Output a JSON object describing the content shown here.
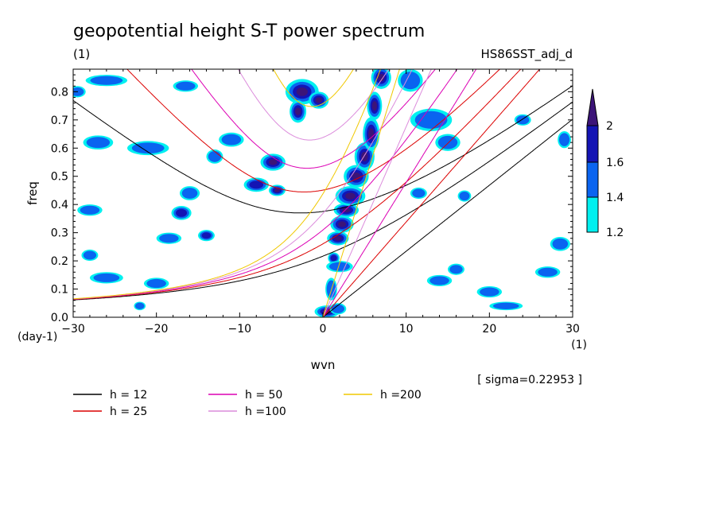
{
  "chart_data": {
    "type": "heatmap",
    "title": "geopotential height S-T power spectrum",
    "subtitle_left": "(1)",
    "subtitle_right": "HS86SST_adj_d",
    "xlabel": "wvn",
    "ylabel": "freq",
    "x_unit": "(1)",
    "y_unit": "(day-1)",
    "xlim": [
      -30,
      30
    ],
    "ylim": [
      0,
      0.88
    ],
    "x_ticks": [
      -30,
      -20,
      -10,
      0,
      10,
      20,
      30
    ],
    "y_ticks": [
      0.0,
      0.1,
      0.2,
      0.3,
      0.4,
      0.5,
      0.6,
      0.7,
      0.8
    ],
    "note": "[ sigma=0.22953 ]",
    "colorbar": {
      "levels": [
        1.2,
        1.4,
        1.6,
        2
      ],
      "labels": [
        "1.2",
        "1.4",
        "1.6",
        "2"
      ],
      "colors": [
        "#00f0f0",
        "#0a64f0",
        "#1414b4",
        "#3c1478"
      ]
    },
    "dispersion_curves": [
      {
        "label": "h = 12",
        "h": 12,
        "color": "#000000"
      },
      {
        "label": "h = 25",
        "h": 25,
        "color": "#dc0000"
      },
      {
        "label": "h = 50",
        "h": 50,
        "color": "#dc00b4"
      },
      {
        "label": "h =100",
        "h": 100,
        "color": "#dc8cdc"
      },
      {
        "label": "h =200",
        "h": 200,
        "color": "#f0c800"
      }
    ],
    "significant_regions": [
      {
        "x": 0.5,
        "y": 0.02,
        "rx": 1.5,
        "ry": 0.022,
        "level": 3
      },
      {
        "x": 1.8,
        "y": 0.03,
        "rx": 1.0,
        "ry": 0.02,
        "level": 1
      },
      {
        "x": 1.0,
        "y": 0.1,
        "rx": 0.7,
        "ry": 0.04,
        "level": 1
      },
      {
        "x": 1.3,
        "y": 0.21,
        "rx": 0.7,
        "ry": 0.02,
        "level": 2
      },
      {
        "x": 2.0,
        "y": 0.18,
        "rx": 1.6,
        "ry": 0.02,
        "level": 1
      },
      {
        "x": 1.8,
        "y": 0.28,
        "rx": 1.3,
        "ry": 0.025,
        "level": 3
      },
      {
        "x": 2.3,
        "y": 0.33,
        "rx": 1.4,
        "ry": 0.03,
        "level": 3
      },
      {
        "x": 2.8,
        "y": 0.38,
        "rx": 1.5,
        "ry": 0.025,
        "level": 3
      },
      {
        "x": 3.3,
        "y": 0.43,
        "rx": 1.8,
        "ry": 0.035,
        "level": 3
      },
      {
        "x": 4.0,
        "y": 0.5,
        "rx": 1.5,
        "ry": 0.04,
        "level": 3
      },
      {
        "x": 5.0,
        "y": 0.57,
        "rx": 1.2,
        "ry": 0.05,
        "level": 3
      },
      {
        "x": 5.8,
        "y": 0.65,
        "rx": 1.0,
        "ry": 0.06,
        "level": 3
      },
      {
        "x": 6.2,
        "y": 0.75,
        "rx": 0.9,
        "ry": 0.05,
        "level": 3
      },
      {
        "x": 7.0,
        "y": 0.85,
        "rx": 1.2,
        "ry": 0.04,
        "level": 3
      },
      {
        "x": -2.5,
        "y": 0.8,
        "rx": 2.0,
        "ry": 0.045,
        "level": 3
      },
      {
        "x": -3.0,
        "y": 0.73,
        "rx": 1.0,
        "ry": 0.04,
        "level": 3
      },
      {
        "x": -0.5,
        "y": 0.77,
        "rx": 1.2,
        "ry": 0.03,
        "level": 3
      },
      {
        "x": 10.5,
        "y": 0.84,
        "rx": 1.5,
        "ry": 0.04,
        "level": 1
      },
      {
        "x": 13.0,
        "y": 0.7,
        "rx": 2.5,
        "ry": 0.04,
        "level": 1
      },
      {
        "x": 15.0,
        "y": 0.62,
        "rx": 1.5,
        "ry": 0.03,
        "level": 1
      },
      {
        "x": -6.0,
        "y": 0.55,
        "rx": 1.5,
        "ry": 0.03,
        "level": 3
      },
      {
        "x": -8.0,
        "y": 0.47,
        "rx": 1.5,
        "ry": 0.025,
        "level": 2
      },
      {
        "x": -5.5,
        "y": 0.45,
        "rx": 1.0,
        "ry": 0.02,
        "level": 3
      },
      {
        "x": -11.0,
        "y": 0.63,
        "rx": 1.5,
        "ry": 0.025,
        "level": 1
      },
      {
        "x": -13.0,
        "y": 0.57,
        "rx": 1.0,
        "ry": 0.025,
        "level": 1
      },
      {
        "x": -16.0,
        "y": 0.44,
        "rx": 1.2,
        "ry": 0.025,
        "level": 1
      },
      {
        "x": -17.0,
        "y": 0.37,
        "rx": 1.2,
        "ry": 0.025,
        "level": 2
      },
      {
        "x": -18.5,
        "y": 0.28,
        "rx": 1.5,
        "ry": 0.02,
        "level": 1
      },
      {
        "x": -14.0,
        "y": 0.29,
        "rx": 1.0,
        "ry": 0.02,
        "level": 2
      },
      {
        "x": -21.0,
        "y": 0.6,
        "rx": 2.5,
        "ry": 0.025,
        "level": 1
      },
      {
        "x": -27.0,
        "y": 0.62,
        "rx": 1.8,
        "ry": 0.025,
        "level": 1
      },
      {
        "x": -28.0,
        "y": 0.38,
        "rx": 1.5,
        "ry": 0.02,
        "level": 1
      },
      {
        "x": -29.5,
        "y": 0.8,
        "rx": 1.0,
        "ry": 0.02,
        "level": 1
      },
      {
        "x": -26.0,
        "y": 0.84,
        "rx": 2.5,
        "ry": 0.02,
        "level": 1
      },
      {
        "x": -16.5,
        "y": 0.82,
        "rx": 1.5,
        "ry": 0.02,
        "level": 1
      },
      {
        "x": -26.0,
        "y": 0.14,
        "rx": 2.0,
        "ry": 0.02,
        "level": 1
      },
      {
        "x": -28.0,
        "y": 0.22,
        "rx": 1.0,
        "ry": 0.02,
        "level": 1
      },
      {
        "x": -20.0,
        "y": 0.12,
        "rx": 1.5,
        "ry": 0.02,
        "level": 1
      },
      {
        "x": -22.0,
        "y": 0.04,
        "rx": 0.7,
        "ry": 0.015,
        "level": 1
      },
      {
        "x": 14.0,
        "y": 0.13,
        "rx": 1.5,
        "ry": 0.02,
        "level": 1
      },
      {
        "x": 16.0,
        "y": 0.17,
        "rx": 1.0,
        "ry": 0.02,
        "level": 1
      },
      {
        "x": 20.0,
        "y": 0.09,
        "rx": 1.5,
        "ry": 0.02,
        "level": 1
      },
      {
        "x": 27.0,
        "y": 0.16,
        "rx": 1.5,
        "ry": 0.02,
        "level": 1
      },
      {
        "x": 28.5,
        "y": 0.26,
        "rx": 1.2,
        "ry": 0.025,
        "level": 1
      },
      {
        "x": 29.0,
        "y": 0.63,
        "rx": 0.8,
        "ry": 0.03,
        "level": 1
      },
      {
        "x": 24.0,
        "y": 0.7,
        "rx": 1.0,
        "ry": 0.02,
        "level": 1
      },
      {
        "x": 22.0,
        "y": 0.04,
        "rx": 2.0,
        "ry": 0.015,
        "level": 1
      },
      {
        "x": 17.0,
        "y": 0.43,
        "rx": 0.8,
        "ry": 0.02,
        "level": 1
      },
      {
        "x": 11.5,
        "y": 0.44,
        "rx": 1.0,
        "ry": 0.02,
        "level": 1
      }
    ]
  }
}
